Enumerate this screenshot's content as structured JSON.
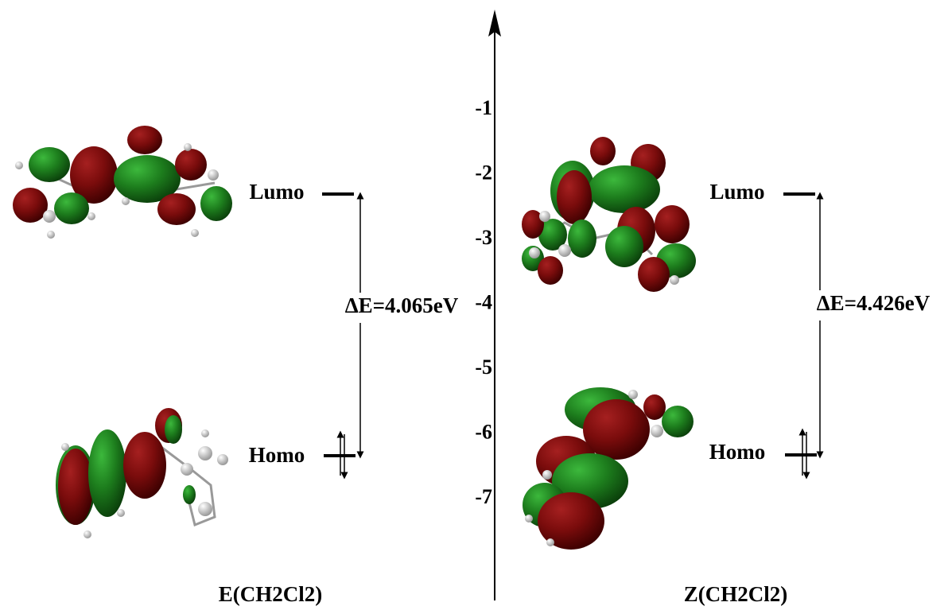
{
  "axis": {
    "ticks": [
      -1,
      -2,
      -3,
      -4,
      -5,
      -6,
      -7
    ]
  },
  "panels": [
    {
      "caption": "E(CH2Cl2)",
      "lumo": "Lumo",
      "homo": "Homo",
      "gap": "ΔE=4.065eV"
    },
    {
      "caption": "Z(CH2Cl2)",
      "lumo": "Lumo",
      "homo": "Homo",
      "gap": "ΔE=4.426eV"
    }
  ]
}
